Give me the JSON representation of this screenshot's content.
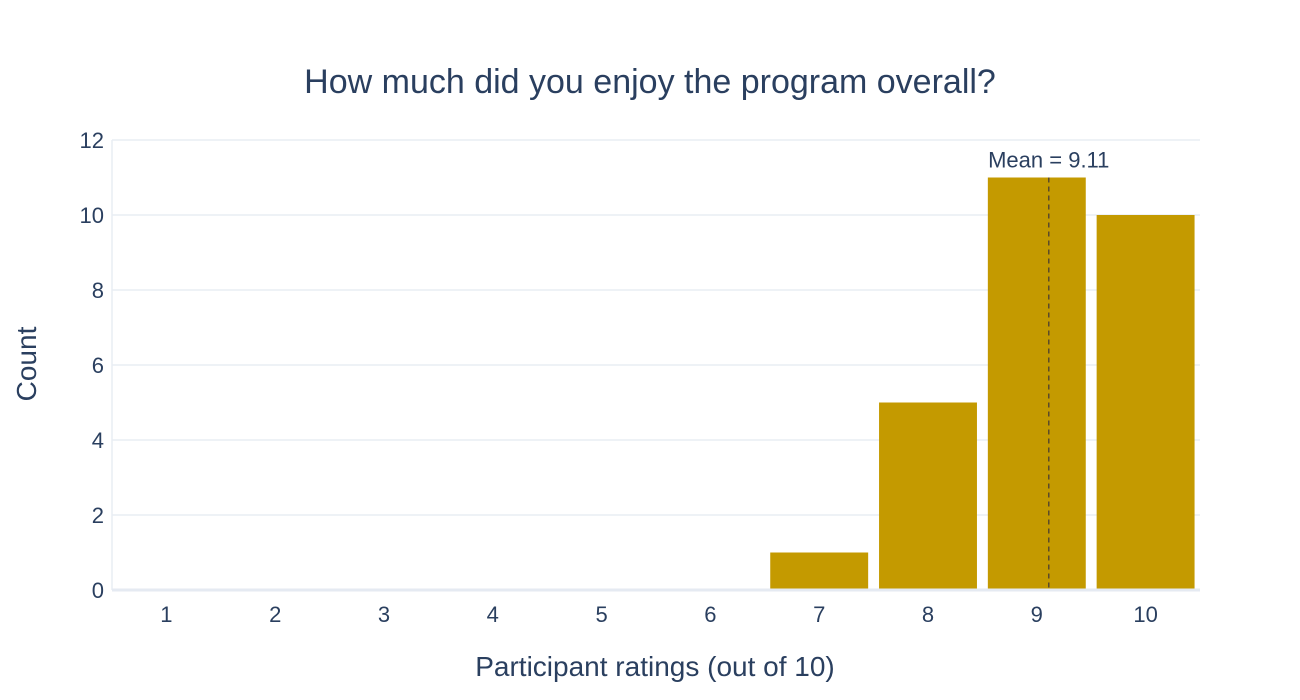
{
  "chart_data": {
    "type": "bar",
    "title": "How much did you enjoy the program overall?",
    "xlabel": "Participant ratings (out of 10)",
    "ylabel": "Count",
    "categories": [
      "1",
      "2",
      "3",
      "4",
      "5",
      "6",
      "7",
      "8",
      "9",
      "10"
    ],
    "values": [
      0,
      0,
      0,
      0,
      0,
      0,
      1,
      5,
      11,
      10
    ],
    "ylim": [
      0,
      12
    ],
    "yticks": [
      "0",
      "2",
      "4",
      "6",
      "8",
      "10",
      "12"
    ],
    "ytick_values": [
      0,
      2,
      4,
      6,
      8,
      10,
      12
    ],
    "grid": true,
    "bar_color": "#c49a00",
    "mean": {
      "value": 9.11,
      "label": "Mean = 9.11"
    }
  }
}
